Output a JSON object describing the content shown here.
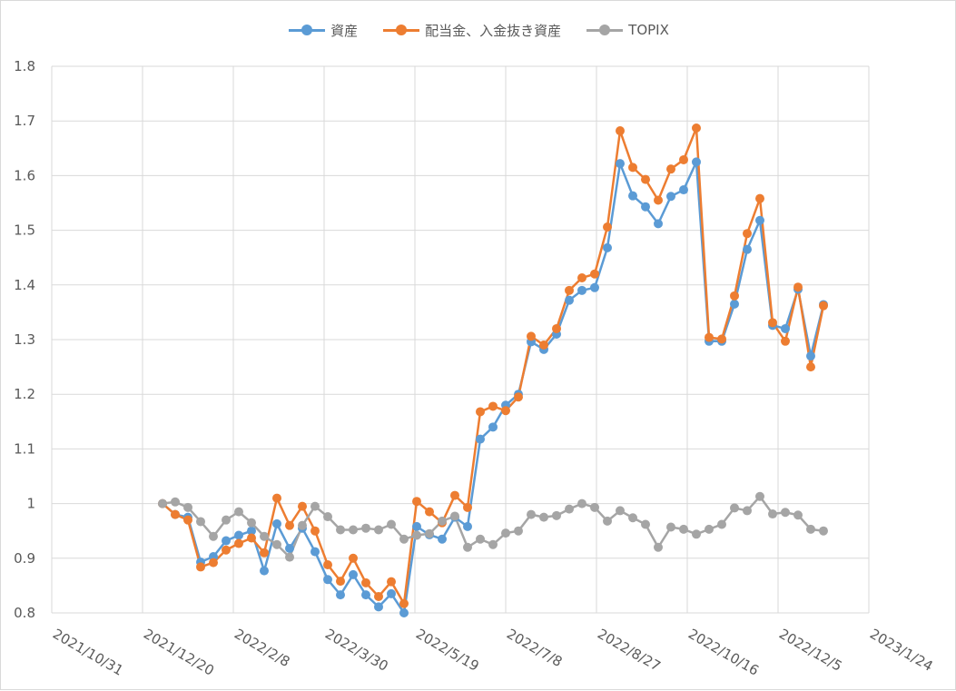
{
  "chart_data": {
    "type": "line",
    "title": "",
    "xlabel": "",
    "ylabel": "",
    "ylim": [
      0.8,
      1.8
    ],
    "y_ticks": [
      "0.8",
      "0.9",
      "1",
      "1.1",
      "1.2",
      "1.3",
      "1.4",
      "1.5",
      "1.6",
      "1.7",
      "1.8"
    ],
    "xlim": [
      "2021-10-31",
      "2023-01-24"
    ],
    "x_tick_labels": [
      "2021/10/31",
      "2021/12/20",
      "2022/2/8",
      "2022/3/30",
      "2022/5/19",
      "2022/7/8",
      "2022/8/27",
      "2022/10/16",
      "2022/12/5",
      "2023/1/24"
    ],
    "grid": true,
    "legend_position": "top",
    "x": [
      "2021-12-31",
      "2022-01-07",
      "2022-01-14",
      "2022-01-21",
      "2022-01-28",
      "2022-02-04",
      "2022-02-11",
      "2022-02-18",
      "2022-02-25",
      "2022-03-04",
      "2022-03-11",
      "2022-03-18",
      "2022-03-25",
      "2022-04-01",
      "2022-04-08",
      "2022-04-15",
      "2022-04-22",
      "2022-04-29",
      "2022-05-06",
      "2022-05-13",
      "2022-05-20",
      "2022-05-27",
      "2022-06-03",
      "2022-06-10",
      "2022-06-17",
      "2022-06-24",
      "2022-07-01",
      "2022-07-08",
      "2022-07-15",
      "2022-07-22",
      "2022-07-29",
      "2022-08-05",
      "2022-08-12",
      "2022-08-19",
      "2022-08-26",
      "2022-09-02",
      "2022-09-09",
      "2022-09-16",
      "2022-09-23",
      "2022-09-30",
      "2022-10-07",
      "2022-10-14",
      "2022-10-21",
      "2022-10-28",
      "2022-11-04",
      "2022-11-11",
      "2022-11-18",
      "2022-11-25",
      "2022-12-02",
      "2022-12-09",
      "2022-12-16",
      "2022-12-23",
      "2022-12-30"
    ],
    "series": [
      {
        "name": "資産",
        "color": "#5B9BD5",
        "values": [
          1.0,
          0.98,
          0.975,
          0.893,
          0.903,
          0.932,
          0.942,
          0.95,
          0.877,
          0.963,
          0.918,
          0.955,
          0.912,
          0.861,
          0.833,
          0.87,
          0.833,
          0.811,
          0.835,
          0.8,
          0.958,
          0.943,
          0.935,
          0.975,
          0.958,
          1.118,
          1.14,
          1.18,
          1.2,
          1.296,
          1.282,
          1.31,
          1.372,
          1.39,
          1.395,
          1.468,
          1.622,
          1.563,
          1.543,
          1.512,
          1.562,
          1.574,
          1.625,
          1.297,
          1.297,
          1.365,
          1.465,
          1.518,
          1.326,
          1.32,
          1.392,
          1.27,
          1.364
        ]
      },
      {
        "name": "配当金、入金抜き資産",
        "color": "#ED7D31",
        "values": [
          1.0,
          0.98,
          0.97,
          0.884,
          0.892,
          0.915,
          0.927,
          0.937,
          0.91,
          1.01,
          0.96,
          0.995,
          0.95,
          0.888,
          0.858,
          0.9,
          0.855,
          0.83,
          0.857,
          0.817,
          1.004,
          0.985,
          0.965,
          1.015,
          0.993,
          1.168,
          1.178,
          1.17,
          1.195,
          1.306,
          1.29,
          1.32,
          1.39,
          1.413,
          1.42,
          1.506,
          1.682,
          1.615,
          1.593,
          1.555,
          1.612,
          1.629,
          1.687,
          1.304,
          1.301,
          1.38,
          1.494,
          1.558,
          1.331,
          1.297,
          1.396,
          1.25,
          1.362
        ]
      },
      {
        "name": "TOPIX",
        "color": "#A5A5A5",
        "values": [
          1.0,
          1.003,
          0.993,
          0.967,
          0.94,
          0.97,
          0.985,
          0.965,
          0.94,
          0.925,
          0.902,
          0.96,
          0.995,
          0.976,
          0.952,
          0.952,
          0.955,
          0.952,
          0.962,
          0.935,
          0.942,
          0.945,
          0.968,
          0.977,
          0.92,
          0.935,
          0.925,
          0.946,
          0.95,
          0.98,
          0.975,
          0.978,
          0.99,
          1.0,
          0.993,
          0.968,
          0.987,
          0.974,
          0.962,
          0.92,
          0.957,
          0.953,
          0.944,
          0.953,
          0.962,
          0.992,
          0.987,
          1.013,
          0.981,
          0.984,
          0.979,
          0.953,
          0.95
        ]
      }
    ]
  }
}
